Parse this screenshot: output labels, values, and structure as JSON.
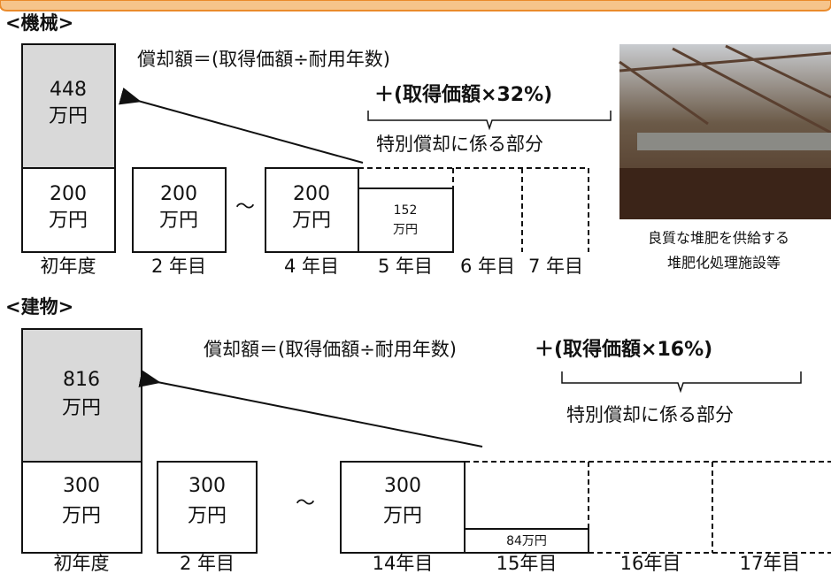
{
  "machinery": {
    "heading": "<機械>",
    "formula": "償却額＝(取得価額÷耐用年数)",
    "formula_bonus": "＋(取得価額×32%)",
    "bonus_note": "特別償却に係る部分",
    "first_year": {
      "bonus": [
        "448",
        "万円"
      ],
      "base": [
        "200",
        "万円"
      ]
    },
    "year2": [
      "200",
      "万円"
    ],
    "separator": "～",
    "year4": [
      "200",
      "万円"
    ],
    "year5": [
      "152",
      "万円"
    ],
    "years": [
      "初年度",
      "2 年目",
      "4 年目",
      "5 年目",
      "6 年目",
      "7 年目"
    ],
    "caption": [
      "良質な堆肥を供給する",
      "堆肥化処理施設等"
    ]
  },
  "building": {
    "heading": "<建物>",
    "formula": "償却額＝(取得価額÷耐用年数)",
    "formula_bonus": "＋(取得価額×16%)",
    "bonus_note": "特別償却に係る部分",
    "first_year": {
      "bonus": [
        "816",
        "万円"
      ],
      "base": [
        "300",
        "万円"
      ]
    },
    "year2": [
      "300",
      "万円"
    ],
    "separator": "～",
    "year14": [
      "300",
      "万円"
    ],
    "year15": "84万円",
    "years": [
      "初年度",
      "2 年目",
      "14年目",
      "15年目",
      "16年目",
      "17年目"
    ]
  }
}
